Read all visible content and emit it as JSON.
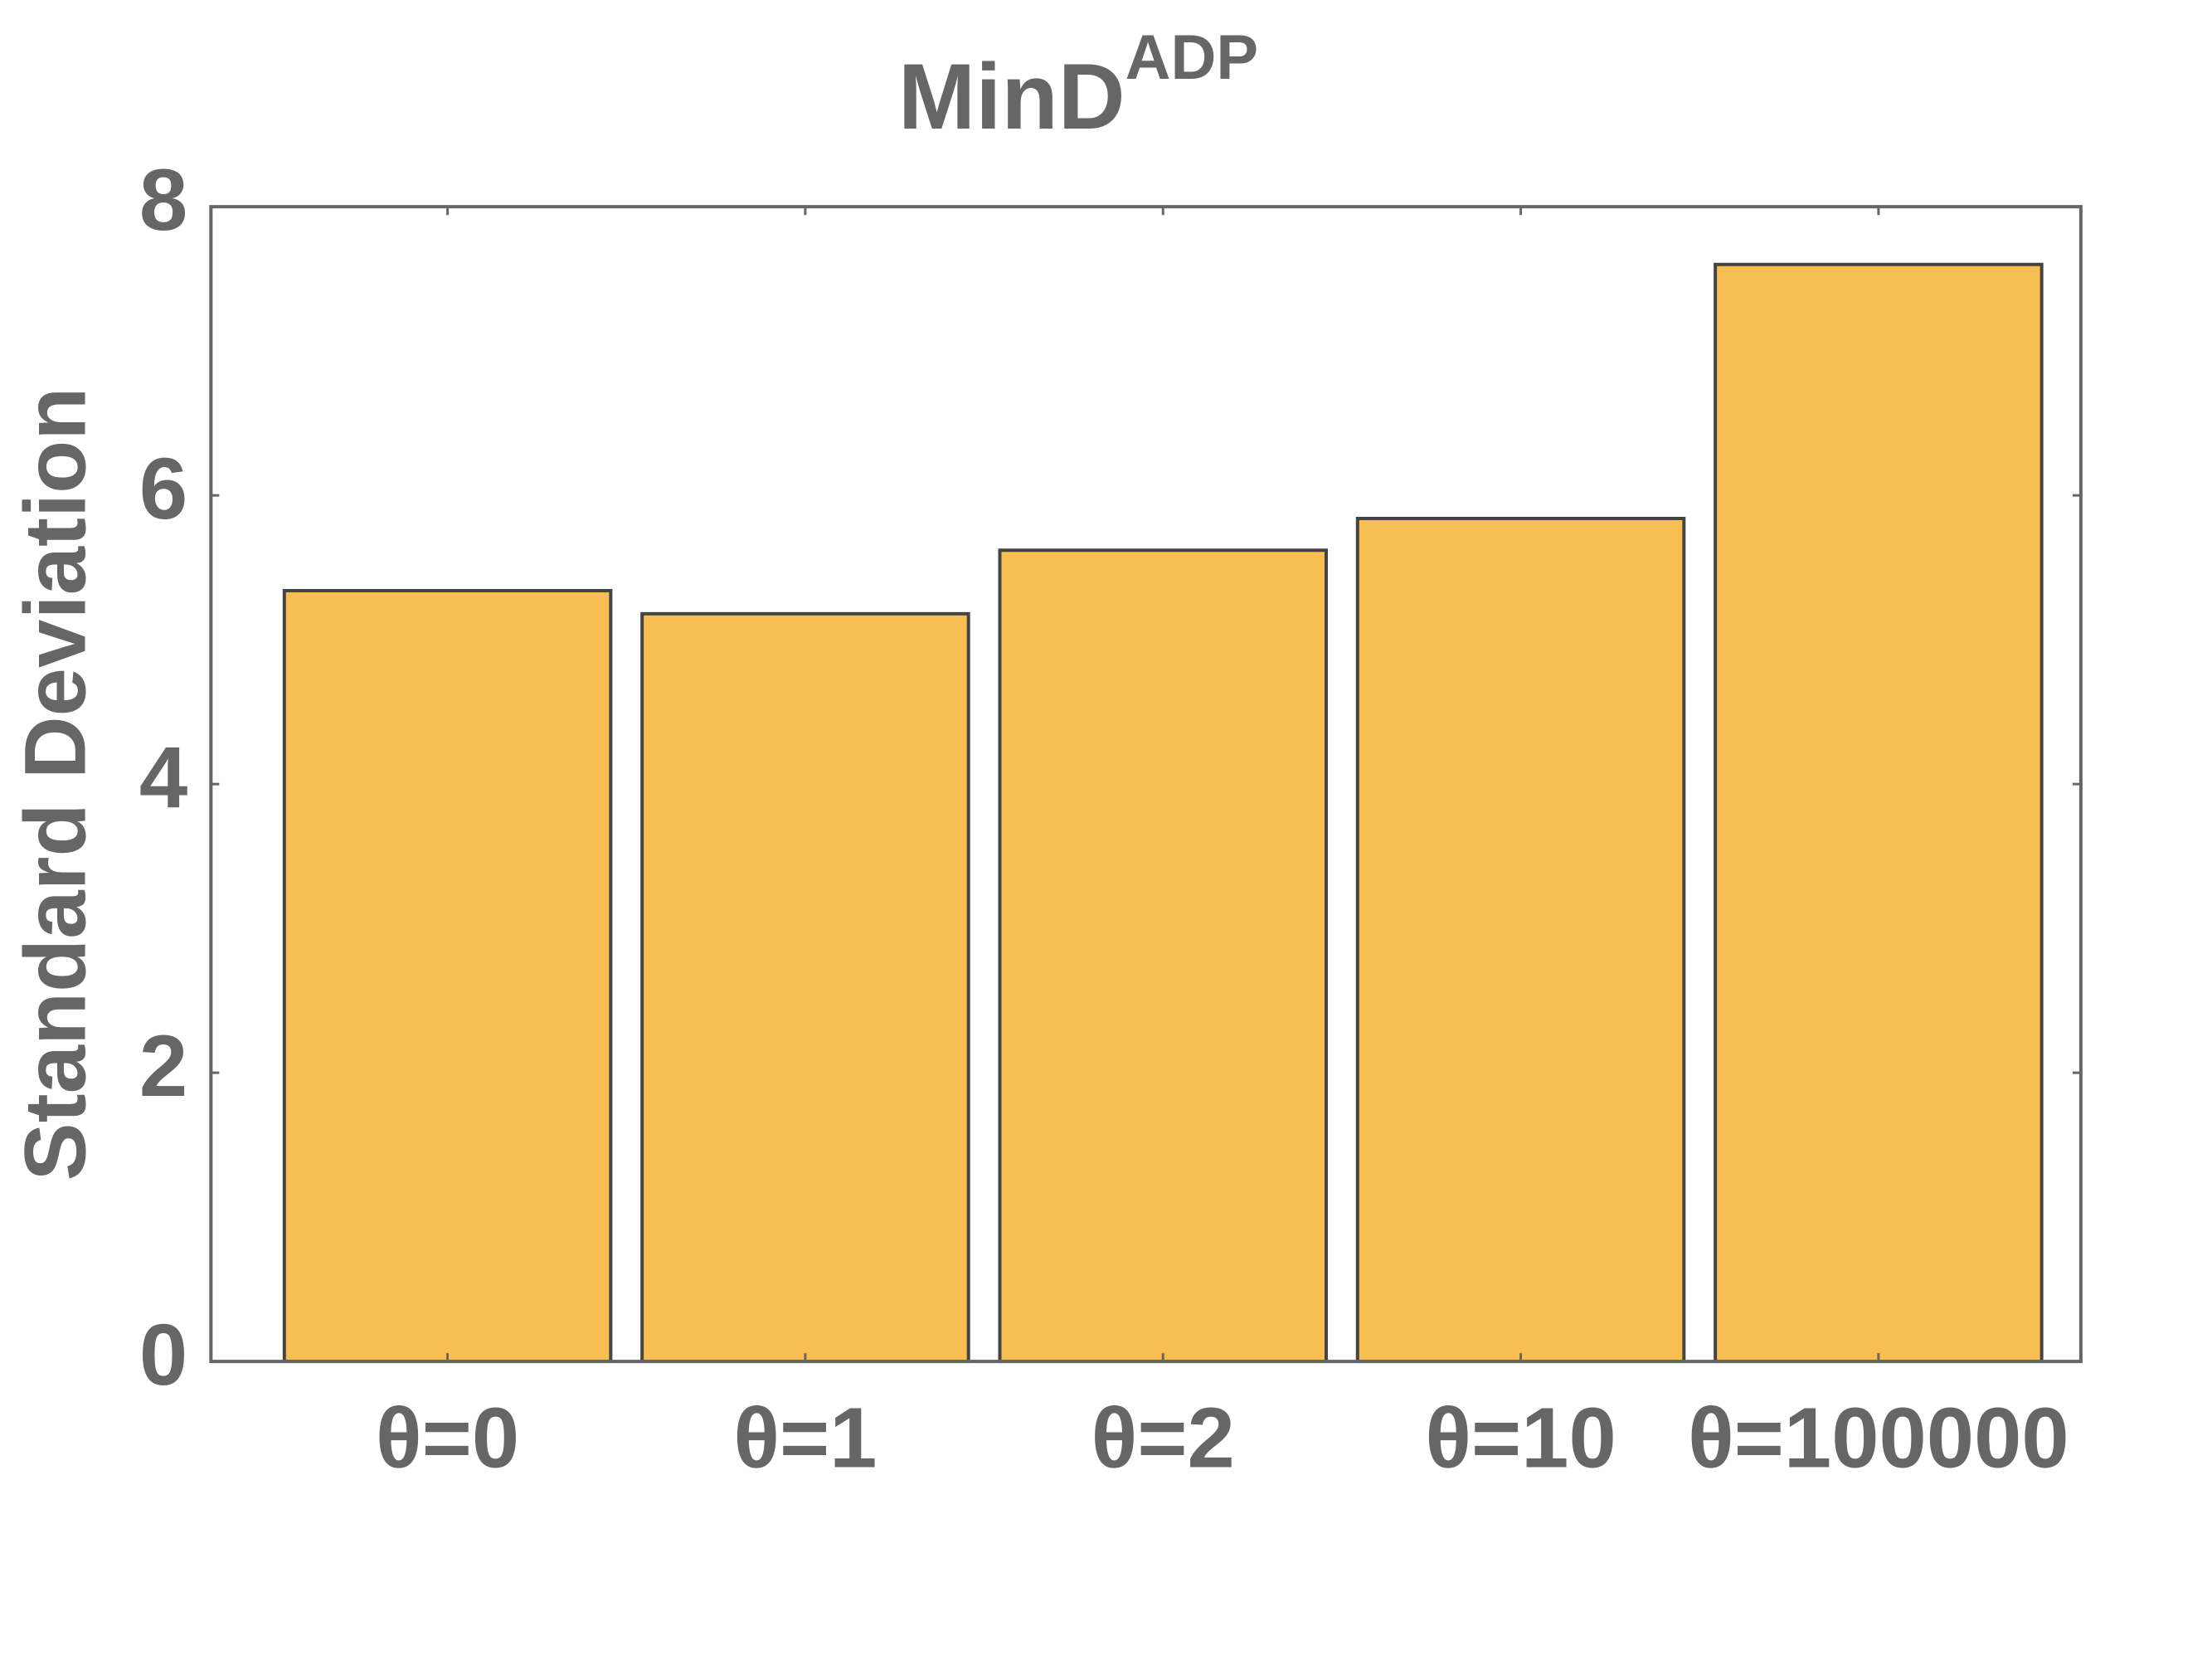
{
  "chart_data": {
    "type": "bar",
    "title": "MinD",
    "title_superscript": "ADP",
    "y_label": "Standard Deviation",
    "categories": [
      "θ=0",
      "θ=1",
      "θ=2",
      "θ=10",
      "θ=100000"
    ],
    "values": [
      5.34,
      5.18,
      5.62,
      5.84,
      7.6
    ],
    "color": "#f9be52",
    "ylim": [
      0,
      8
    ],
    "yticks": [
      0,
      2,
      4,
      6,
      8
    ],
    "grid": false
  }
}
